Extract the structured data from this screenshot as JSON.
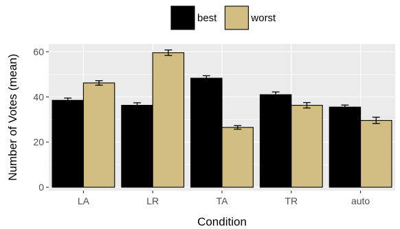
{
  "chart_data": {
    "type": "bar",
    "title": "",
    "xlabel": "Condition",
    "ylabel": "Number of Votes (mean)",
    "categories": [
      "LA",
      "LR",
      "TA",
      "TR",
      "auto"
    ],
    "ylim": [
      -1.5,
      63.5
    ],
    "yticks": [
      0,
      20,
      40,
      60
    ],
    "grid": true,
    "legend_position": "top",
    "error_bars": true,
    "series": [
      {
        "name": "best",
        "color": "#000000",
        "values": [
          38.5,
          36.3,
          48.3,
          41.0,
          35.5
        ],
        "errors": [
          1.0,
          1.1,
          1.1,
          1.2,
          0.9
        ]
      },
      {
        "name": "worst",
        "color": "#d2bd82",
        "values": [
          46.2,
          59.6,
          26.5,
          36.3,
          29.6
        ],
        "errors": [
          1.0,
          1.2,
          0.8,
          1.2,
          1.4
        ]
      }
    ]
  }
}
